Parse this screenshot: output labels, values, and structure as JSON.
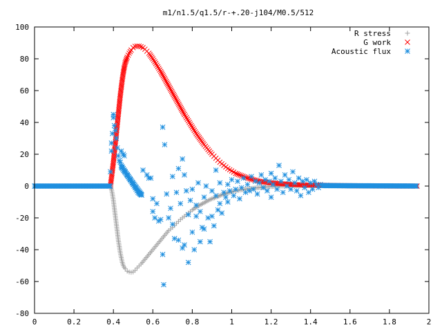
{
  "chart_data": {
    "type": "scatter",
    "title": "m1/n1.5/q1.5/r-+.20-j104/M0.5/512",
    "xlabel": "",
    "ylabel": "",
    "xlim": [
      0,
      2
    ],
    "ylim": [
      -80,
      100
    ],
    "x_ticks": [
      "0",
      "0.2",
      "0.4",
      "0.6",
      "0.8",
      "1",
      "1.2",
      "1.4",
      "1.6",
      "1.8",
      "2"
    ],
    "y_ticks": [
      "100",
      "80",
      "60",
      "40",
      "20",
      "0",
      "-20",
      "-40",
      "-60",
      "-80"
    ],
    "legend_position": "top-right",
    "grid": false,
    "series": [
      {
        "name": "R stress",
        "marker": "plus",
        "color": "#a0a0a0",
        "points": [
          [
            0.0,
            0
          ],
          [
            0.05,
            0
          ],
          [
            0.1,
            0
          ],
          [
            0.15,
            0
          ],
          [
            0.2,
            0
          ],
          [
            0.25,
            0
          ],
          [
            0.3,
            0
          ],
          [
            0.35,
            0
          ],
          [
            0.385,
            0
          ],
          [
            0.39,
            -2
          ],
          [
            0.395,
            -5
          ],
          [
            0.4,
            -9
          ],
          [
            0.405,
            -14
          ],
          [
            0.41,
            -19
          ],
          [
            0.415,
            -24
          ],
          [
            0.42,
            -29
          ],
          [
            0.425,
            -34
          ],
          [
            0.43,
            -38
          ],
          [
            0.435,
            -42
          ],
          [
            0.44,
            -45
          ],
          [
            0.445,
            -48
          ],
          [
            0.45,
            -50
          ],
          [
            0.46,
            -52
          ],
          [
            0.47,
            -53.5
          ],
          [
            0.48,
            -54
          ],
          [
            0.49,
            -54.2
          ],
          [
            0.5,
            -54
          ],
          [
            0.51,
            -53
          ],
          [
            0.52,
            -51.5
          ],
          [
            0.54,
            -49
          ],
          [
            0.56,
            -46
          ],
          [
            0.58,
            -43
          ],
          [
            0.6,
            -40
          ],
          [
            0.62,
            -37
          ],
          [
            0.64,
            -34
          ],
          [
            0.66,
            -31
          ],
          [
            0.68,
            -28
          ],
          [
            0.7,
            -26
          ],
          [
            0.72,
            -23.5
          ],
          [
            0.74,
            -21
          ],
          [
            0.76,
            -19
          ],
          [
            0.78,
            -17
          ],
          [
            0.8,
            -15
          ],
          [
            0.83,
            -12.5
          ],
          [
            0.86,
            -10.5
          ],
          [
            0.89,
            -8.5
          ],
          [
            0.92,
            -7
          ],
          [
            0.95,
            -5.5
          ],
          [
            0.98,
            -4.3
          ],
          [
            1.01,
            -3.3
          ],
          [
            1.05,
            -2.3
          ],
          [
            1.1,
            -1.5
          ],
          [
            1.15,
            -0.8
          ],
          [
            1.2,
            -0.3
          ],
          [
            1.25,
            0
          ],
          [
            1.3,
            0.2
          ],
          [
            1.35,
            0.3
          ],
          [
            1.4,
            0.3
          ],
          [
            1.45,
            0.3
          ],
          [
            1.5,
            0.2
          ],
          [
            1.6,
            0.1
          ],
          [
            1.7,
            0
          ],
          [
            1.8,
            0
          ],
          [
            1.9,
            0
          ],
          [
            1.94,
            0
          ]
        ]
      },
      {
        "name": "G work",
        "marker": "cross",
        "color": "#ff0000",
        "points": [
          [
            0.385,
            0
          ],
          [
            0.39,
            5
          ],
          [
            0.395,
            10
          ],
          [
            0.4,
            15
          ],
          [
            0.405,
            21
          ],
          [
            0.41,
            27
          ],
          [
            0.415,
            33
          ],
          [
            0.42,
            39
          ],
          [
            0.425,
            45
          ],
          [
            0.43,
            51
          ],
          [
            0.435,
            57
          ],
          [
            0.44,
            62
          ],
          [
            0.445,
            67
          ],
          [
            0.45,
            71
          ],
          [
            0.455,
            74.5
          ],
          [
            0.46,
            77.5
          ],
          [
            0.47,
            81
          ],
          [
            0.48,
            83.5
          ],
          [
            0.49,
            85.5
          ],
          [
            0.5,
            87
          ],
          [
            0.51,
            87.8
          ],
          [
            0.52,
            88
          ],
          [
            0.53,
            88
          ],
          [
            0.54,
            87.6
          ],
          [
            0.55,
            87
          ],
          [
            0.56,
            86
          ],
          [
            0.58,
            83.5
          ],
          [
            0.6,
            80
          ],
          [
            0.62,
            76
          ],
          [
            0.64,
            72
          ],
          [
            0.66,
            67.5
          ],
          [
            0.68,
            63
          ],
          [
            0.7,
            58.5
          ],
          [
            0.72,
            54
          ],
          [
            0.74,
            49.5
          ],
          [
            0.76,
            45
          ],
          [
            0.78,
            41
          ],
          [
            0.8,
            37
          ],
          [
            0.82,
            33
          ],
          [
            0.84,
            29.5
          ],
          [
            0.86,
            26
          ],
          [
            0.88,
            23
          ],
          [
            0.9,
            20
          ],
          [
            0.92,
            17.5
          ],
          [
            0.94,
            15
          ],
          [
            0.96,
            13
          ],
          [
            0.98,
            11
          ],
          [
            1.0,
            9.5
          ],
          [
            1.02,
            8
          ],
          [
            1.05,
            6.5
          ],
          [
            1.08,
            5
          ],
          [
            1.11,
            4
          ],
          [
            1.14,
            3
          ],
          [
            1.17,
            2.5
          ],
          [
            1.2,
            2
          ],
          [
            1.25,
            1.5
          ],
          [
            1.3,
            1
          ],
          [
            1.35,
            0.8
          ],
          [
            1.4,
            0.6
          ],
          [
            1.45,
            0.5
          ],
          [
            1.5,
            0.4
          ],
          [
            1.55,
            0.3
          ],
          [
            1.6,
            0.2
          ],
          [
            1.7,
            0.1
          ],
          [
            1.8,
            0
          ],
          [
            1.9,
            0
          ],
          [
            1.94,
            0
          ]
        ]
      },
      {
        "name": "Acoustic flux",
        "marker": "star",
        "color": "#1f8fdf",
        "points": [
          [
            0.0,
            0
          ],
          [
            0.05,
            0
          ],
          [
            0.1,
            0
          ],
          [
            0.15,
            0
          ],
          [
            0.2,
            0
          ],
          [
            0.25,
            0
          ],
          [
            0.3,
            0
          ],
          [
            0.35,
            0
          ],
          [
            0.385,
            0
          ],
          [
            0.385,
            9
          ],
          [
            0.39,
            22
          ],
          [
            0.39,
            27
          ],
          [
            0.395,
            33
          ],
          [
            0.4,
            43
          ],
          [
            0.4,
            45
          ],
          [
            0.405,
            38
          ],
          [
            0.41,
            35
          ],
          [
            0.415,
            30
          ],
          [
            0.42,
            24
          ],
          [
            0.425,
            19
          ],
          [
            0.43,
            16
          ],
          [
            0.435,
            15
          ],
          [
            0.44,
            13
          ],
          [
            0.445,
            12
          ],
          [
            0.45,
            11
          ],
          [
            0.455,
            10
          ],
          [
            0.46,
            9
          ],
          [
            0.465,
            8
          ],
          [
            0.47,
            7
          ],
          [
            0.475,
            6
          ],
          [
            0.48,
            5
          ],
          [
            0.485,
            4
          ],
          [
            0.49,
            3
          ],
          [
            0.495,
            2
          ],
          [
            0.5,
            1
          ],
          [
            0.505,
            0
          ],
          [
            0.51,
            -1
          ],
          [
            0.515,
            -2
          ],
          [
            0.52,
            -3
          ],
          [
            0.525,
            -4
          ],
          [
            0.53,
            -4.5
          ],
          [
            0.535,
            -5
          ],
          [
            0.54,
            -5.5
          ],
          [
            0.44,
            22
          ],
          [
            0.45,
            20
          ],
          [
            0.455,
            19
          ],
          [
            0.55,
            10
          ],
          [
            0.57,
            7
          ],
          [
            0.58,
            5
          ],
          [
            0.59,
            5
          ],
          [
            0.6,
            -8
          ],
          [
            0.6,
            -16
          ],
          [
            0.61,
            -20
          ],
          [
            0.62,
            -11
          ],
          [
            0.63,
            -22
          ],
          [
            0.64,
            -21
          ],
          [
            0.65,
            37
          ],
          [
            0.66,
            26
          ],
          [
            0.65,
            -43
          ],
          [
            0.655,
            -62
          ],
          [
            0.67,
            -5
          ],
          [
            0.68,
            -20
          ],
          [
            0.69,
            -14
          ],
          [
            0.7,
            6
          ],
          [
            0.7,
            -24
          ],
          [
            0.71,
            -33
          ],
          [
            0.72,
            -4
          ],
          [
            0.73,
            11
          ],
          [
            0.73,
            -34
          ],
          [
            0.74,
            -11
          ],
          [
            0.75,
            -39
          ],
          [
            0.75,
            17
          ],
          [
            0.76,
            7
          ],
          [
            0.76,
            -37
          ],
          [
            0.77,
            -3
          ],
          [
            0.78,
            -18
          ],
          [
            0.78,
            -48
          ],
          [
            0.79,
            -9
          ],
          [
            0.8,
            -2
          ],
          [
            0.8,
            -29
          ],
          [
            0.81,
            -40
          ],
          [
            0.82,
            -19
          ],
          [
            0.82,
            -12
          ],
          [
            0.83,
            2
          ],
          [
            0.84,
            -16
          ],
          [
            0.84,
            -35
          ],
          [
            0.85,
            -26
          ],
          [
            0.86,
            -7
          ],
          [
            0.86,
            -27
          ],
          [
            0.87,
            0
          ],
          [
            0.88,
            -20
          ],
          [
            0.89,
            -35
          ],
          [
            0.9,
            -3
          ],
          [
            0.9,
            -19
          ],
          [
            0.91,
            -25
          ],
          [
            0.92,
            10
          ],
          [
            0.92,
            -6
          ],
          [
            0.93,
            -15
          ],
          [
            0.94,
            2
          ],
          [
            0.94,
            -11
          ],
          [
            0.95,
            -17
          ],
          [
            0.96,
            -4
          ],
          [
            0.97,
            -7
          ],
          [
            0.98,
            1
          ],
          [
            0.98,
            -10
          ],
          [
            0.99,
            -3
          ],
          [
            1.0,
            4
          ],
          [
            1.01,
            -6
          ],
          [
            1.02,
            -2
          ],
          [
            1.03,
            3
          ],
          [
            1.04,
            -8
          ],
          [
            1.05,
            -1
          ],
          [
            1.06,
            5
          ],
          [
            1.07,
            -4
          ],
          [
            1.08,
            1
          ],
          [
            1.09,
            -3
          ],
          [
            1.1,
            6
          ],
          [
            1.11,
            -2
          ],
          [
            1.12,
            3
          ],
          [
            1.13,
            -5
          ],
          [
            1.14,
            2
          ],
          [
            1.15,
            7
          ],
          [
            1.16,
            -1
          ],
          [
            1.17,
            4
          ],
          [
            1.18,
            -3
          ],
          [
            1.19,
            3
          ],
          [
            1.2,
            8
          ],
          [
            1.2,
            -7
          ],
          [
            1.21,
            1
          ],
          [
            1.22,
            5
          ],
          [
            1.23,
            -2
          ],
          [
            1.24,
            13
          ],
          [
            1.25,
            3
          ],
          [
            1.26,
            -4
          ],
          [
            1.27,
            7
          ],
          [
            1.28,
            0
          ],
          [
            1.29,
            4
          ],
          [
            1.3,
            -2
          ],
          [
            1.31,
            9
          ],
          [
            1.32,
            2
          ],
          [
            1.33,
            -3
          ],
          [
            1.34,
            5
          ],
          [
            1.35,
            -6
          ],
          [
            1.36,
            3
          ],
          [
            1.37,
            -1
          ],
          [
            1.38,
            4
          ],
          [
            1.39,
            -4
          ],
          [
            1.4,
            2
          ],
          [
            1.41,
            -2
          ],
          [
            1.42,
            3
          ],
          [
            1.43,
            1
          ],
          [
            1.44,
            -1
          ],
          [
            1.45,
            1
          ],
          [
            1.46,
            0
          ],
          [
            1.48,
            0.5
          ],
          [
            1.5,
            0.3
          ],
          [
            1.55,
            0.2
          ],
          [
            1.6,
            0.1
          ],
          [
            1.65,
            0
          ],
          [
            1.7,
            0
          ],
          [
            1.75,
            0
          ],
          [
            1.8,
            0
          ],
          [
            1.85,
            0
          ],
          [
            1.9,
            0
          ],
          [
            1.94,
            0
          ]
        ]
      }
    ]
  }
}
